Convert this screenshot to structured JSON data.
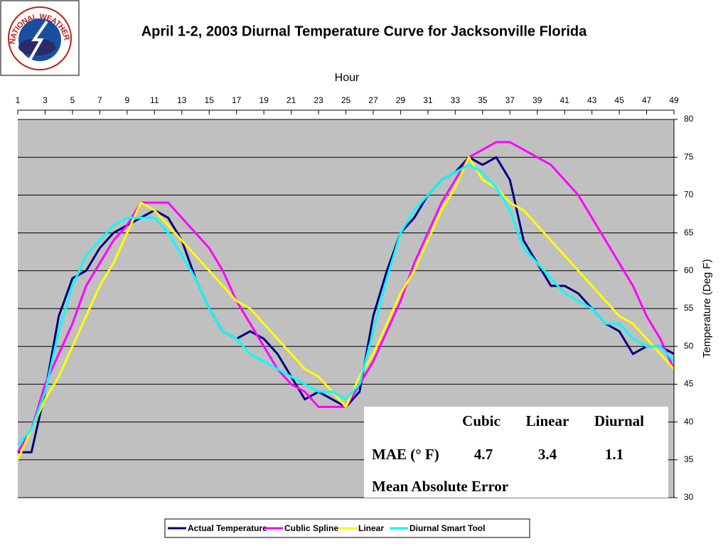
{
  "logo_text": "NATIONAL WEATHER SERVICE",
  "chart_data": {
    "type": "line",
    "title": "April 1-2, 2003 Diurnal Temperature Curve for Jacksonville Florida",
    "xlabel": "Hour",
    "ylabel": "Temperature (Deg F)",
    "x": [
      1,
      2,
      3,
      4,
      5,
      6,
      7,
      8,
      9,
      10,
      11,
      12,
      13,
      14,
      15,
      16,
      17,
      18,
      19,
      20,
      21,
      22,
      23,
      24,
      25,
      26,
      27,
      28,
      29,
      30,
      31,
      32,
      33,
      34,
      35,
      36,
      37,
      38,
      39,
      40,
      41,
      42,
      43,
      44,
      45,
      46,
      47,
      48,
      49
    ],
    "xlim": [
      1,
      49
    ],
    "xticks": [
      1,
      3,
      5,
      7,
      9,
      11,
      13,
      15,
      17,
      19,
      21,
      23,
      25,
      27,
      29,
      31,
      33,
      35,
      37,
      39,
      41,
      43,
      45,
      47,
      49
    ],
    "ylim": [
      30,
      80
    ],
    "yticks": [
      30,
      35,
      40,
      45,
      50,
      55,
      60,
      65,
      70,
      75,
      80
    ],
    "grid": true,
    "legend": "bottom",
    "series": [
      {
        "name": "Actual Temperature",
        "color": "#000080",
        "values": [
          36,
          36,
          44,
          54,
          59,
          60,
          63,
          65,
          66,
          67,
          68,
          67,
          64,
          59,
          55,
          52,
          51,
          52,
          51,
          49,
          46,
          43,
          44,
          43,
          42,
          44,
          54,
          60,
          65,
          67,
          70,
          72,
          73,
          75,
          74,
          75,
          72,
          64,
          61,
          58,
          58,
          57,
          55,
          53,
          52,
          49,
          50,
          50,
          49
        ]
      },
      {
        "name": "Cublic Spline",
        "color": "#ff00ff",
        "values": [
          36,
          39,
          45,
          49,
          53,
          58,
          61,
          64,
          66,
          69,
          69,
          69,
          67,
          65,
          63,
          60,
          56,
          53,
          50,
          47,
          45,
          44,
          42,
          42,
          42,
          45,
          48,
          52,
          56,
          61,
          65,
          69,
          72,
          75,
          76,
          77,
          77,
          76,
          75,
          74,
          72,
          70,
          67,
          64,
          61,
          58,
          54,
          51,
          47
        ]
      },
      {
        "name": "Linear",
        "color": "#ffff00",
        "values": [
          35,
          39,
          43,
          46,
          50,
          54,
          58,
          61,
          65,
          69,
          68,
          66,
          64,
          62,
          60,
          58,
          56,
          55,
          53,
          51,
          49,
          47,
          46,
          44,
          42,
          46,
          49,
          53,
          57,
          60,
          64,
          68,
          71,
          75,
          72,
          71,
          69,
          68,
          66,
          64,
          62,
          60,
          58,
          56,
          54,
          53,
          51,
          49,
          47
        ]
      },
      {
        "name": "Diurnal Smart Tool",
        "color": "#00ffff",
        "values": [
          37,
          39,
          44,
          52,
          58,
          62,
          64,
          66,
          67,
          67,
          67,
          65,
          62,
          59,
          55,
          52,
          51,
          49,
          48,
          47,
          46,
          45,
          44,
          44,
          43,
          45,
          52,
          59,
          65,
          68,
          70,
          72,
          73,
          74,
          73,
          71,
          68,
          63,
          61,
          59,
          57,
          56,
          55,
          53,
          53,
          51,
          50,
          50,
          48
        ]
      }
    ]
  },
  "mae_table": {
    "header": [
      "Cubic",
      "Linear",
      "Diurnal"
    ],
    "row_label": "MAE (° F)",
    "values": [
      "4.7",
      "3.4",
      "1.1"
    ],
    "caption": "Mean Absolute Error"
  }
}
